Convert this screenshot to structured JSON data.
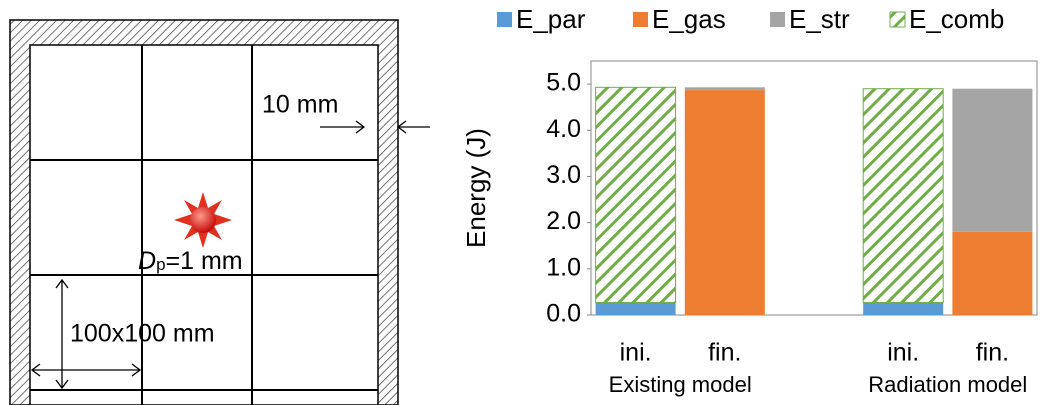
{
  "chart_data": {
    "type": "stacked_bar",
    "categories": [
      "ini.",
      "fin.",
      null,
      "ini.",
      "fin."
    ],
    "group_labels": [
      "Existing model",
      "Radiation model"
    ],
    "y_label": "Energy (J)",
    "series": [
      {
        "name": "E_par",
        "color": "#5b9bd5",
        "values": [
          0.27,
          0,
          null,
          0.27,
          0
        ]
      },
      {
        "name": "E_gas",
        "color": "#ed7d31",
        "values": [
          0,
          4.87,
          null,
          0,
          1.8
        ]
      },
      {
        "name": "E_str",
        "color": "#a5a5a5",
        "values": [
          0,
          0.06,
          null,
          0,
          3.1
        ]
      },
      {
        "name": "E_comb",
        "color": "#70ad47",
        "hatch": true,
        "values": [
          4.66,
          0,
          null,
          4.63,
          0
        ]
      }
    ],
    "ylim": [
      0,
      5.5
    ],
    "yticks": [
      {
        "value": 0,
        "label": "0.0"
      },
      {
        "value": 1,
        "label": "1.0"
      },
      {
        "value": 2,
        "label": "2.0"
      },
      {
        "value": 3,
        "label": "3.0"
      },
      {
        "value": 4,
        "label": "4.0"
      },
      {
        "value": 5,
        "label": "5.0"
      }
    ],
    "legend": "top"
  },
  "diagram": {
    "gap_label": "10 mm",
    "source_symbol": "D",
    "source_subscript": "p",
    "source_rest": "=1 mm",
    "cell_label": "100x100 mm"
  }
}
